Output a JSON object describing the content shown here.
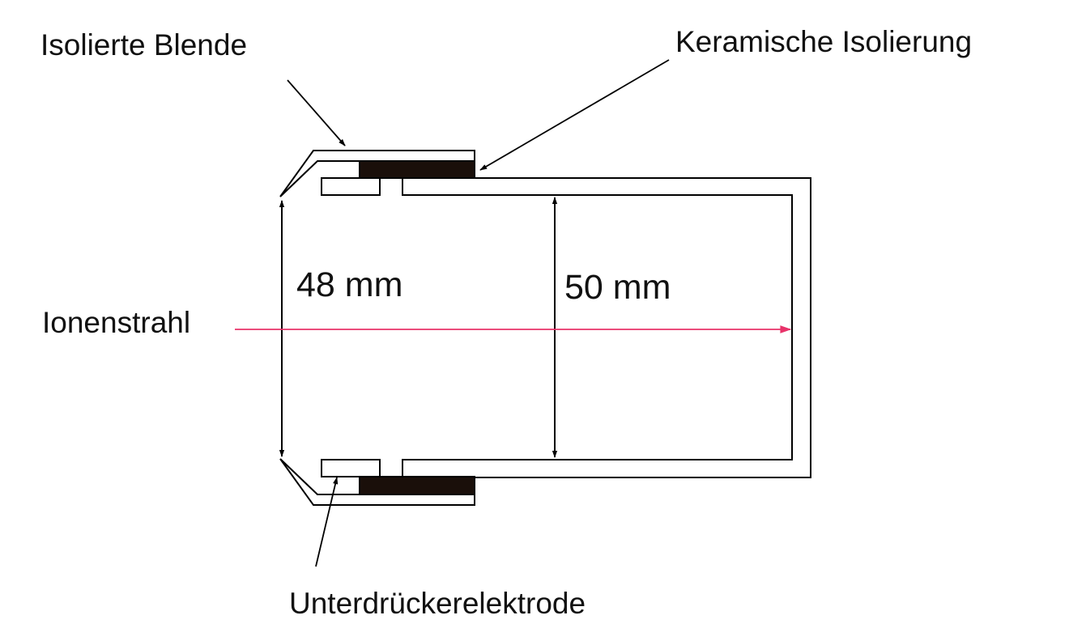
{
  "labels": {
    "aperture": "Isolierte Blende",
    "ceramic": "Keramische Isolierung",
    "beam": "Ionenstrahl",
    "suppressor": "Unterdrückerelektrode",
    "dim_inner": "48 mm",
    "dim_outer": "50 mm"
  },
  "colors": {
    "line": "#000000",
    "ceramic": "#1a0f0a",
    "beam": "#e8336a",
    "background": "#ffffff"
  }
}
